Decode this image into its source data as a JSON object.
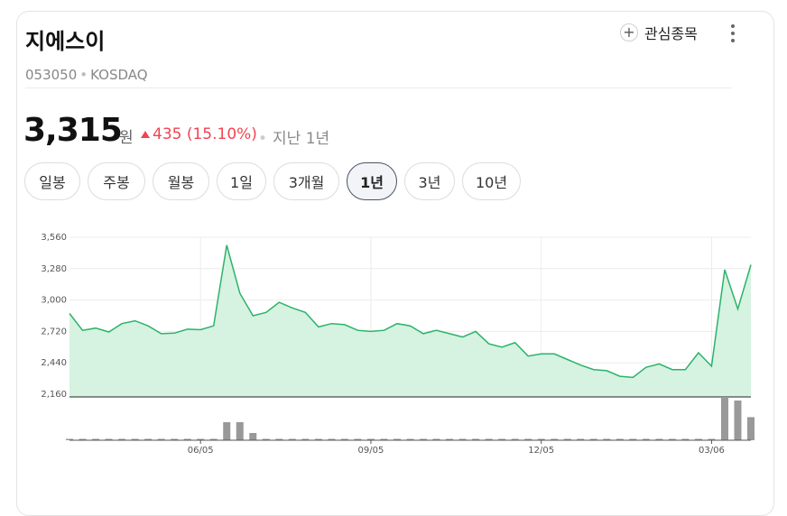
{
  "stock": {
    "name": "지에스이",
    "code": "053050",
    "market": "KOSDAQ",
    "price": "3,315",
    "unit": "원",
    "change": "435 (15.10%)",
    "change_direction": "up",
    "period_label": "지난 1년"
  },
  "actions": {
    "favorite_label": "관심종목",
    "favorite_icon": "plus-icon",
    "more_icon": "more-vertical-icon"
  },
  "tabs": [
    {
      "label": "일봉",
      "active": false
    },
    {
      "label": "주봉",
      "active": false
    },
    {
      "label": "월봉",
      "active": false
    },
    {
      "label": "1일",
      "active": false
    },
    {
      "label": "3개월",
      "active": false
    },
    {
      "label": "1년",
      "active": true
    },
    {
      "label": "3년",
      "active": false
    },
    {
      "label": "10년",
      "active": false
    }
  ],
  "colors": {
    "up": "#f04452",
    "line": "#2bb36a",
    "area": "#d6f2e1",
    "volume": "#999999"
  },
  "chart_data": {
    "type": "area",
    "y_ticks": [
      "3,560",
      "3,280",
      "3,000",
      "2,720",
      "2,440",
      "2,160"
    ],
    "ylim": [
      2160,
      3560
    ],
    "x_ticks": [
      {
        "label": "06/05",
        "index": 10
      },
      {
        "label": "09/05",
        "index": 23
      },
      {
        "label": "12/05",
        "index": 36
      },
      {
        "label": "03/06",
        "index": 49
      }
    ],
    "grid": true,
    "values": [
      2880,
      2730,
      2750,
      2715,
      2790,
      2815,
      2770,
      2700,
      2705,
      2740,
      2735,
      2770,
      3490,
      3060,
      2860,
      2890,
      2980,
      2930,
      2890,
      2760,
      2790,
      2780,
      2730,
      2720,
      2730,
      2790,
      2770,
      2700,
      2730,
      2700,
      2670,
      2720,
      2610,
      2580,
      2620,
      2500,
      2520,
      2520,
      2470,
      2420,
      2380,
      2370,
      2320,
      2310,
      2400,
      2430,
      2380,
      2380,
      2530,
      2410,
      3270,
      2920,
      3315
    ],
    "volume": [
      0,
      0,
      0,
      0,
      0,
      0,
      0,
      0,
      0,
      0,
      0,
      0,
      2.5,
      2.5,
      1,
      0,
      0,
      0,
      0,
      0,
      0,
      0,
      0,
      0,
      0,
      0,
      0,
      0,
      0,
      0,
      0,
      0,
      0,
      0,
      0,
      0,
      0,
      0,
      0,
      0,
      0,
      0,
      0,
      0,
      0,
      0,
      0,
      0,
      0,
      0,
      6,
      5.5,
      3.2
    ]
  }
}
